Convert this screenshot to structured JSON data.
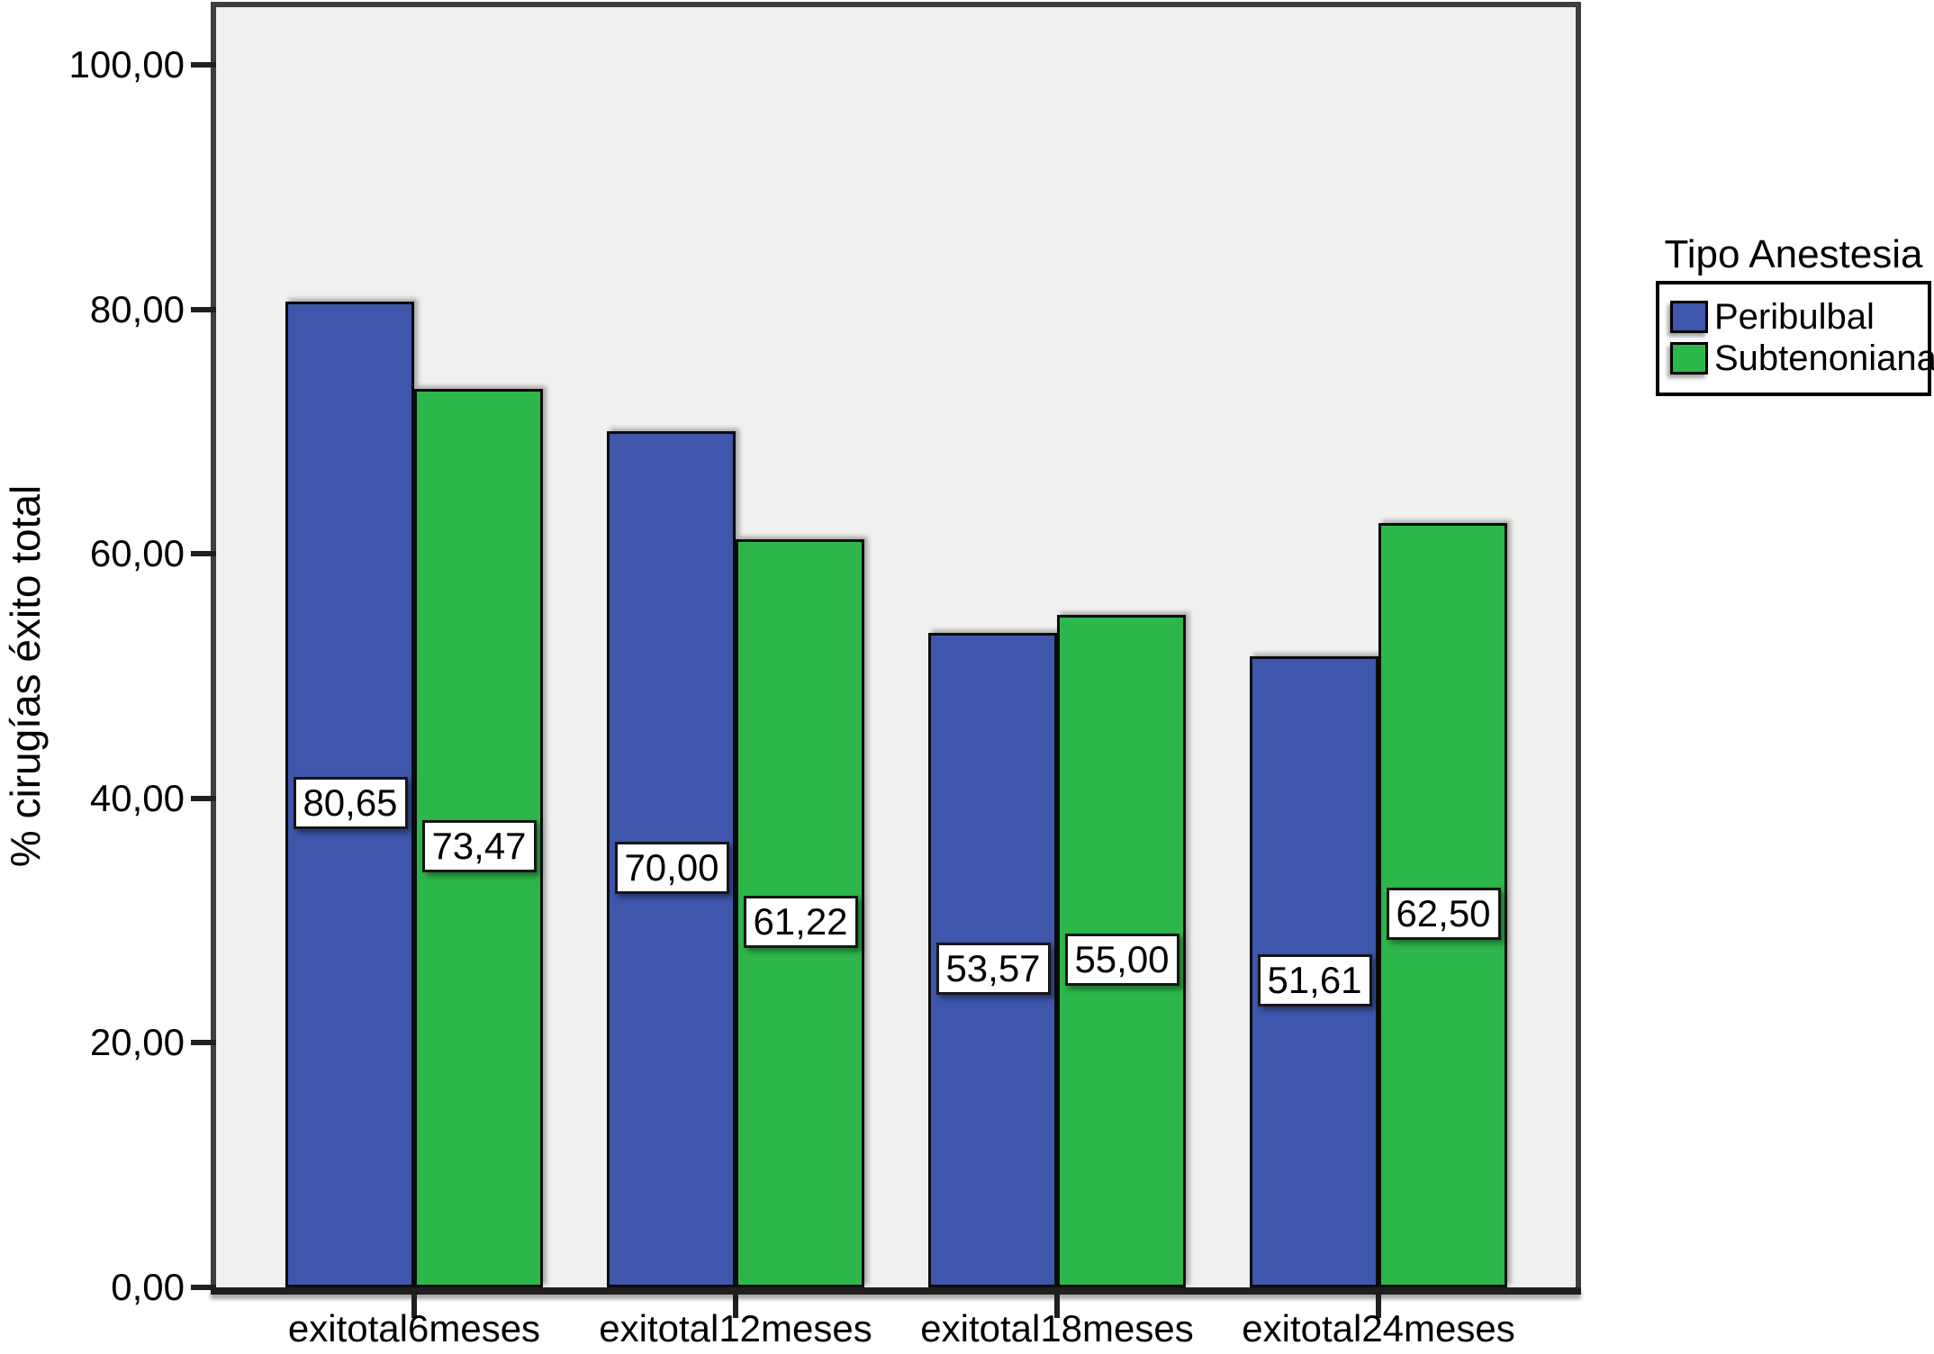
{
  "chart_data": {
    "type": "bar",
    "title": "",
    "xlabel": "",
    "ylabel": "% cirugías éxito total",
    "categories": [
      "exitotal6meses",
      "exitotal12meses",
      "exitotal18meses",
      "exitotal24meses"
    ],
    "series": [
      {
        "name": "Peribulbal",
        "color": "#3E56AC",
        "values": [
          80.65,
          70.0,
          53.57,
          51.61
        ],
        "value_labels": [
          "80,65",
          "70,00",
          "53,57",
          "51,61"
        ]
      },
      {
        "name": "Subtenoniana",
        "color": "#2DB74A",
        "values": [
          73.47,
          61.22,
          55.0,
          62.5
        ],
        "value_labels": [
          "73,47",
          "61,22",
          "55,00",
          "62,50"
        ]
      }
    ],
    "ylim": [
      0,
      100
    ],
    "yticks": [
      {
        "value": 0,
        "label": "0,00"
      },
      {
        "value": 20,
        "label": "20,00"
      },
      {
        "value": 40,
        "label": "40,00"
      },
      {
        "value": 60,
        "label": "60,00"
      },
      {
        "value": 80,
        "label": "80,00"
      },
      {
        "value": 100,
        "label": "100,00"
      }
    ],
    "legend_title": "Tipo Anestesia",
    "legend_position": "right",
    "grid": false,
    "value_labels_shown": true,
    "colors": {
      "plot_background": "#F0F0EE",
      "frame": "#3E3E3E",
      "axis_line": "#1F1F1F",
      "label_box_background": "#FFFFFF"
    }
  }
}
